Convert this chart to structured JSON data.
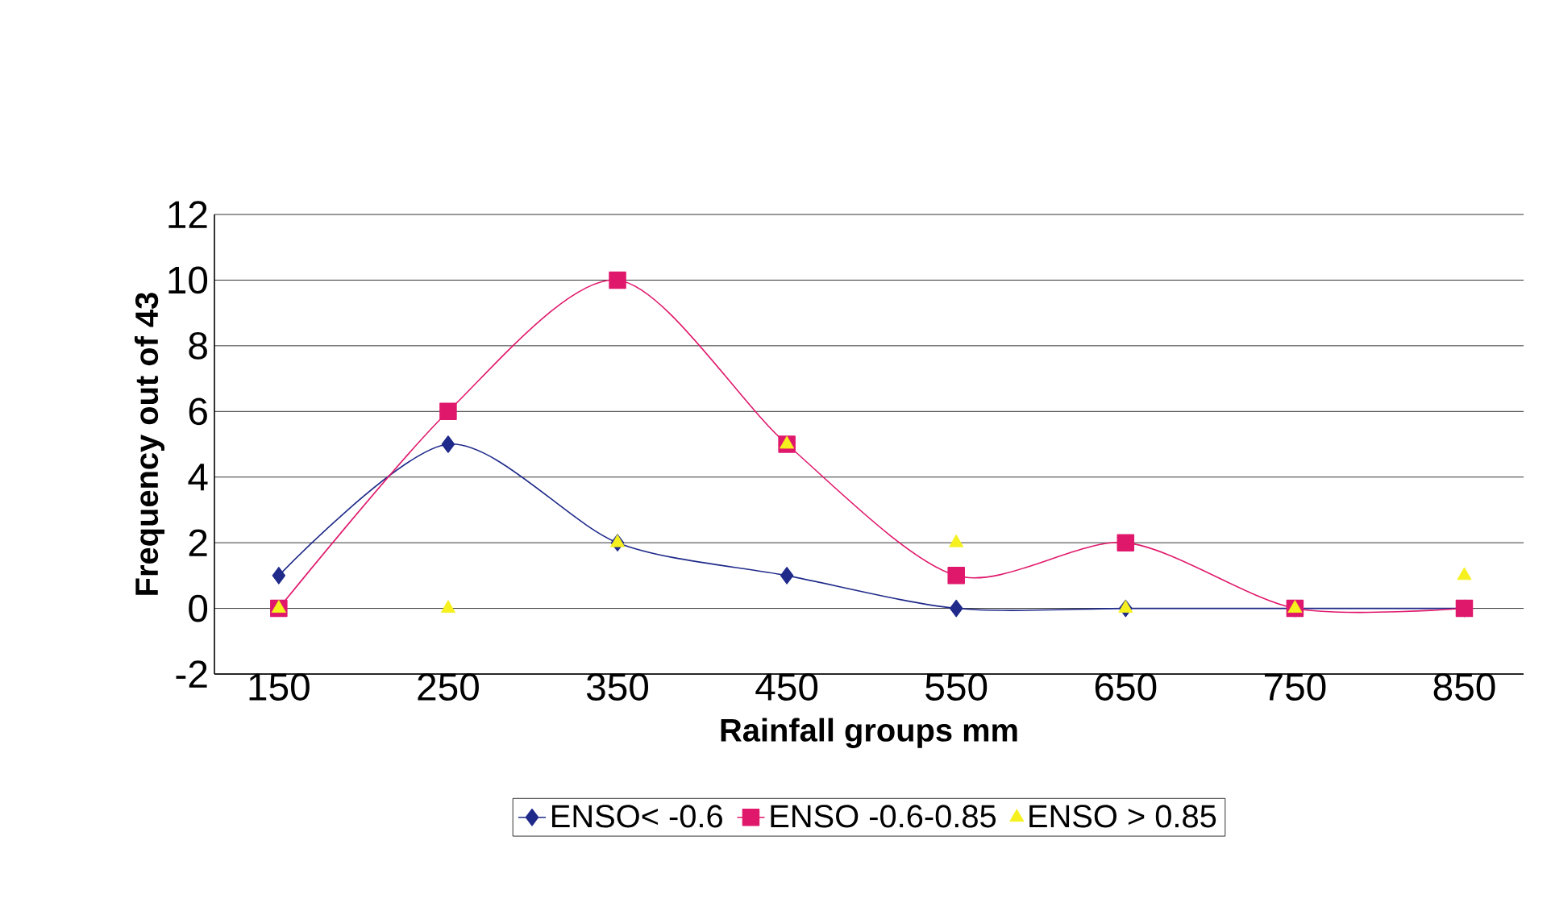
{
  "chart_data": {
    "type": "line",
    "xlabel": "Rainfall groups mm",
    "ylabel": "Frequency out of 43",
    "categories": [
      "150",
      "250",
      "350",
      "450",
      "550",
      "650",
      "750",
      "850"
    ],
    "series": [
      {
        "name": "ENSO< -0.6",
        "color": "#1f2a8a",
        "marker": "diamond",
        "values": [
          1,
          5,
          2,
          1,
          0,
          0,
          0,
          0
        ]
      },
      {
        "name": "ENSO -0.6-0.85",
        "color": "#e0186c",
        "marker": "square",
        "values": [
          0,
          6,
          10,
          5,
          1,
          2,
          0,
          0
        ]
      },
      {
        "name": "ENSO > 0.85",
        "type": "scatter",
        "color": "#f5f01e",
        "marker": "triangle",
        "values": [
          0,
          0,
          2,
          5,
          2,
          0,
          0,
          1
        ]
      }
    ],
    "ylim": [
      -2,
      12
    ],
    "yticks": [
      -2,
      0,
      2,
      4,
      6,
      8,
      10,
      12
    ],
    "grid": "y",
    "legend": "bottom"
  }
}
